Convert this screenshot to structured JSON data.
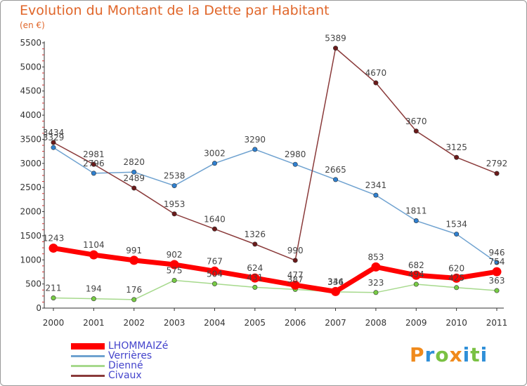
{
  "title": "Evolution du Montant de la Dette par Habitant",
  "unit": "(en €)",
  "logo": {
    "text": "Proxiti",
    "letters": [
      {
        "ch": "P",
        "color": "#f08a1c"
      },
      {
        "ch": "r",
        "color": "#2f8fd8"
      },
      {
        "ch": "o",
        "color": "#7ac143"
      },
      {
        "ch": "x",
        "color": "#f08a1c"
      },
      {
        "ch": "i",
        "color": "#2f8fd8"
      },
      {
        "ch": "t",
        "color": "#7ac143"
      },
      {
        "ch": "i",
        "color": "#2f8fd8"
      }
    ]
  },
  "chart_data": {
    "type": "line",
    "title": "Evolution du Montant de la Dette par Habitant",
    "ylabel": "(en €)",
    "xlabel": "",
    "x": [
      "2000",
      "2001",
      "2002",
      "2003",
      "2004",
      "2005",
      "2006",
      "2007",
      "2008",
      "2009",
      "2010",
      "2011"
    ],
    "ylim": [
      0,
      5500
    ],
    "yticks": [
      0,
      500,
      1000,
      1500,
      2000,
      2500,
      3000,
      3500,
      4000,
      4500,
      5000,
      5500
    ],
    "grid": false,
    "legend": "bottom-left",
    "series": [
      {
        "name": "LHOMMAIZé",
        "color": "#ff0000",
        "marker": "#ff0000",
        "width": 7,
        "values": [
          1243,
          1104,
          991,
          902,
          767,
          624,
          477,
          344,
          853,
          682,
          620,
          754
        ]
      },
      {
        "name": "Verrières",
        "color": "#6fa2d0",
        "marker": "#2f80d0",
        "width": 1.5,
        "values": [
          3329,
          2796,
          2820,
          2538,
          3002,
          3290,
          2980,
          2665,
          2341,
          1811,
          1534,
          946
        ]
      },
      {
        "name": "Dienné",
        "color": "#a6d98c",
        "marker": "#77cc44",
        "width": 1.5,
        "values": [
          211,
          194,
          176,
          575,
          504,
          431,
          387,
          336,
          323,
          494,
          425,
          363
        ]
      },
      {
        "name": "Civaux",
        "color": "#8a3a3a",
        "marker": "#6b1a1a",
        "width": 1.5,
        "values": [
          3434,
          2981,
          2489,
          1953,
          1640,
          1326,
          990,
          5389,
          4670,
          3670,
          3125,
          2792
        ]
      }
    ]
  }
}
